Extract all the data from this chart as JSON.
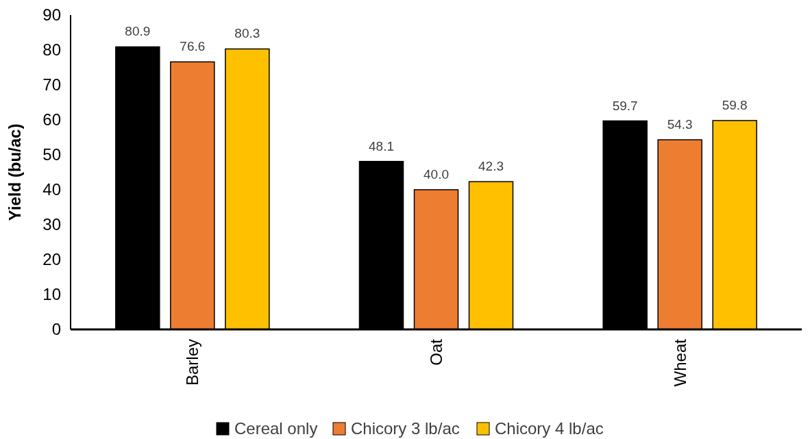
{
  "chart_data": {
    "type": "bar",
    "ylabel": "Yield (bu/ac)",
    "categories": [
      "Barley",
      "Oat",
      "Wheat"
    ],
    "series": [
      {
        "name": "Cereal only",
        "color": "#000000",
        "values": [
          80.9,
          48.1,
          59.7
        ],
        "value_labels": [
          "80.9",
          "48.1",
          "59.7"
        ]
      },
      {
        "name": "Chicory 3 lb/ac",
        "color": "#ed7d31",
        "values": [
          76.6,
          40.0,
          54.3
        ],
        "value_labels": [
          "76.6",
          "40.0",
          "54.3"
        ]
      },
      {
        "name": "Chicory 4 lb/ac",
        "color": "#ffc000",
        "values": [
          80.3,
          42.3,
          59.8
        ],
        "value_labels": [
          "80.3",
          "42.3",
          "59.8"
        ]
      }
    ],
    "ylim": [
      0,
      90
    ],
    "yticks": [
      0,
      10,
      20,
      30,
      40,
      50,
      60,
      70,
      80,
      90
    ],
    "grid": false,
    "legend": "bottom"
  }
}
